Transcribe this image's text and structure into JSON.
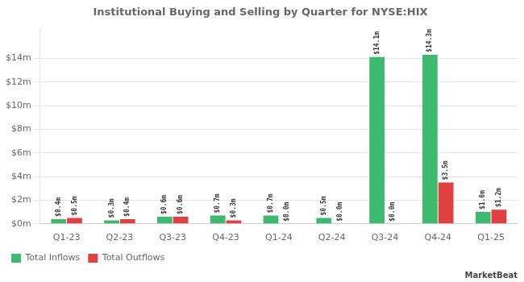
{
  "chart_data": {
    "type": "bar",
    "title": "Institutional Buying and Selling by Quarter for NYSE:HIX",
    "categories": [
      "Q1-23",
      "Q2-23",
      "Q3-23",
      "Q4-23",
      "Q1-24",
      "Q2-24",
      "Q3-24",
      "Q4-24",
      "Q1-25"
    ],
    "series": [
      {
        "name": "Total Inflows",
        "color": "#3dba6e",
        "values": [
          0.4,
          0.3,
          0.6,
          0.7,
          0.7,
          0.5,
          14.1,
          14.3,
          1.0
        ],
        "value_labels": [
          "$0.4m",
          "$0.3m",
          "$0.6m",
          "$0.7m",
          "$0.7m",
          "$0.5m",
          "$14.1m",
          "$14.3m",
          "$1.0m"
        ]
      },
      {
        "name": "Total Outflows",
        "color": "#e04040",
        "values": [
          0.5,
          0.4,
          0.6,
          0.3,
          0.0,
          0.0,
          0.0,
          3.5,
          1.2
        ],
        "value_labels": [
          "$0.5m",
          "$0.4m",
          "$0.6m",
          "$0.3m",
          "$0.0m",
          "$0.0m",
          "$0.0m",
          "$3.5m",
          "$1.2m"
        ]
      }
    ],
    "ylim": [
      0,
      16.5
    ],
    "yticks": [
      {
        "value": 0,
        "label": "$0m"
      },
      {
        "value": 2,
        "label": "$2m"
      },
      {
        "value": 4,
        "label": "$4m"
      },
      {
        "value": 6,
        "label": "$6m"
      },
      {
        "value": 8,
        "label": "$8m"
      },
      {
        "value": 10,
        "label": "$10m"
      },
      {
        "value": 12,
        "label": "$12m"
      },
      {
        "value": 14,
        "label": "$14m"
      }
    ],
    "grid": true,
    "legend": "lower left",
    "data_labels": true,
    "annotations": [
      "MarketBeat"
    ]
  }
}
